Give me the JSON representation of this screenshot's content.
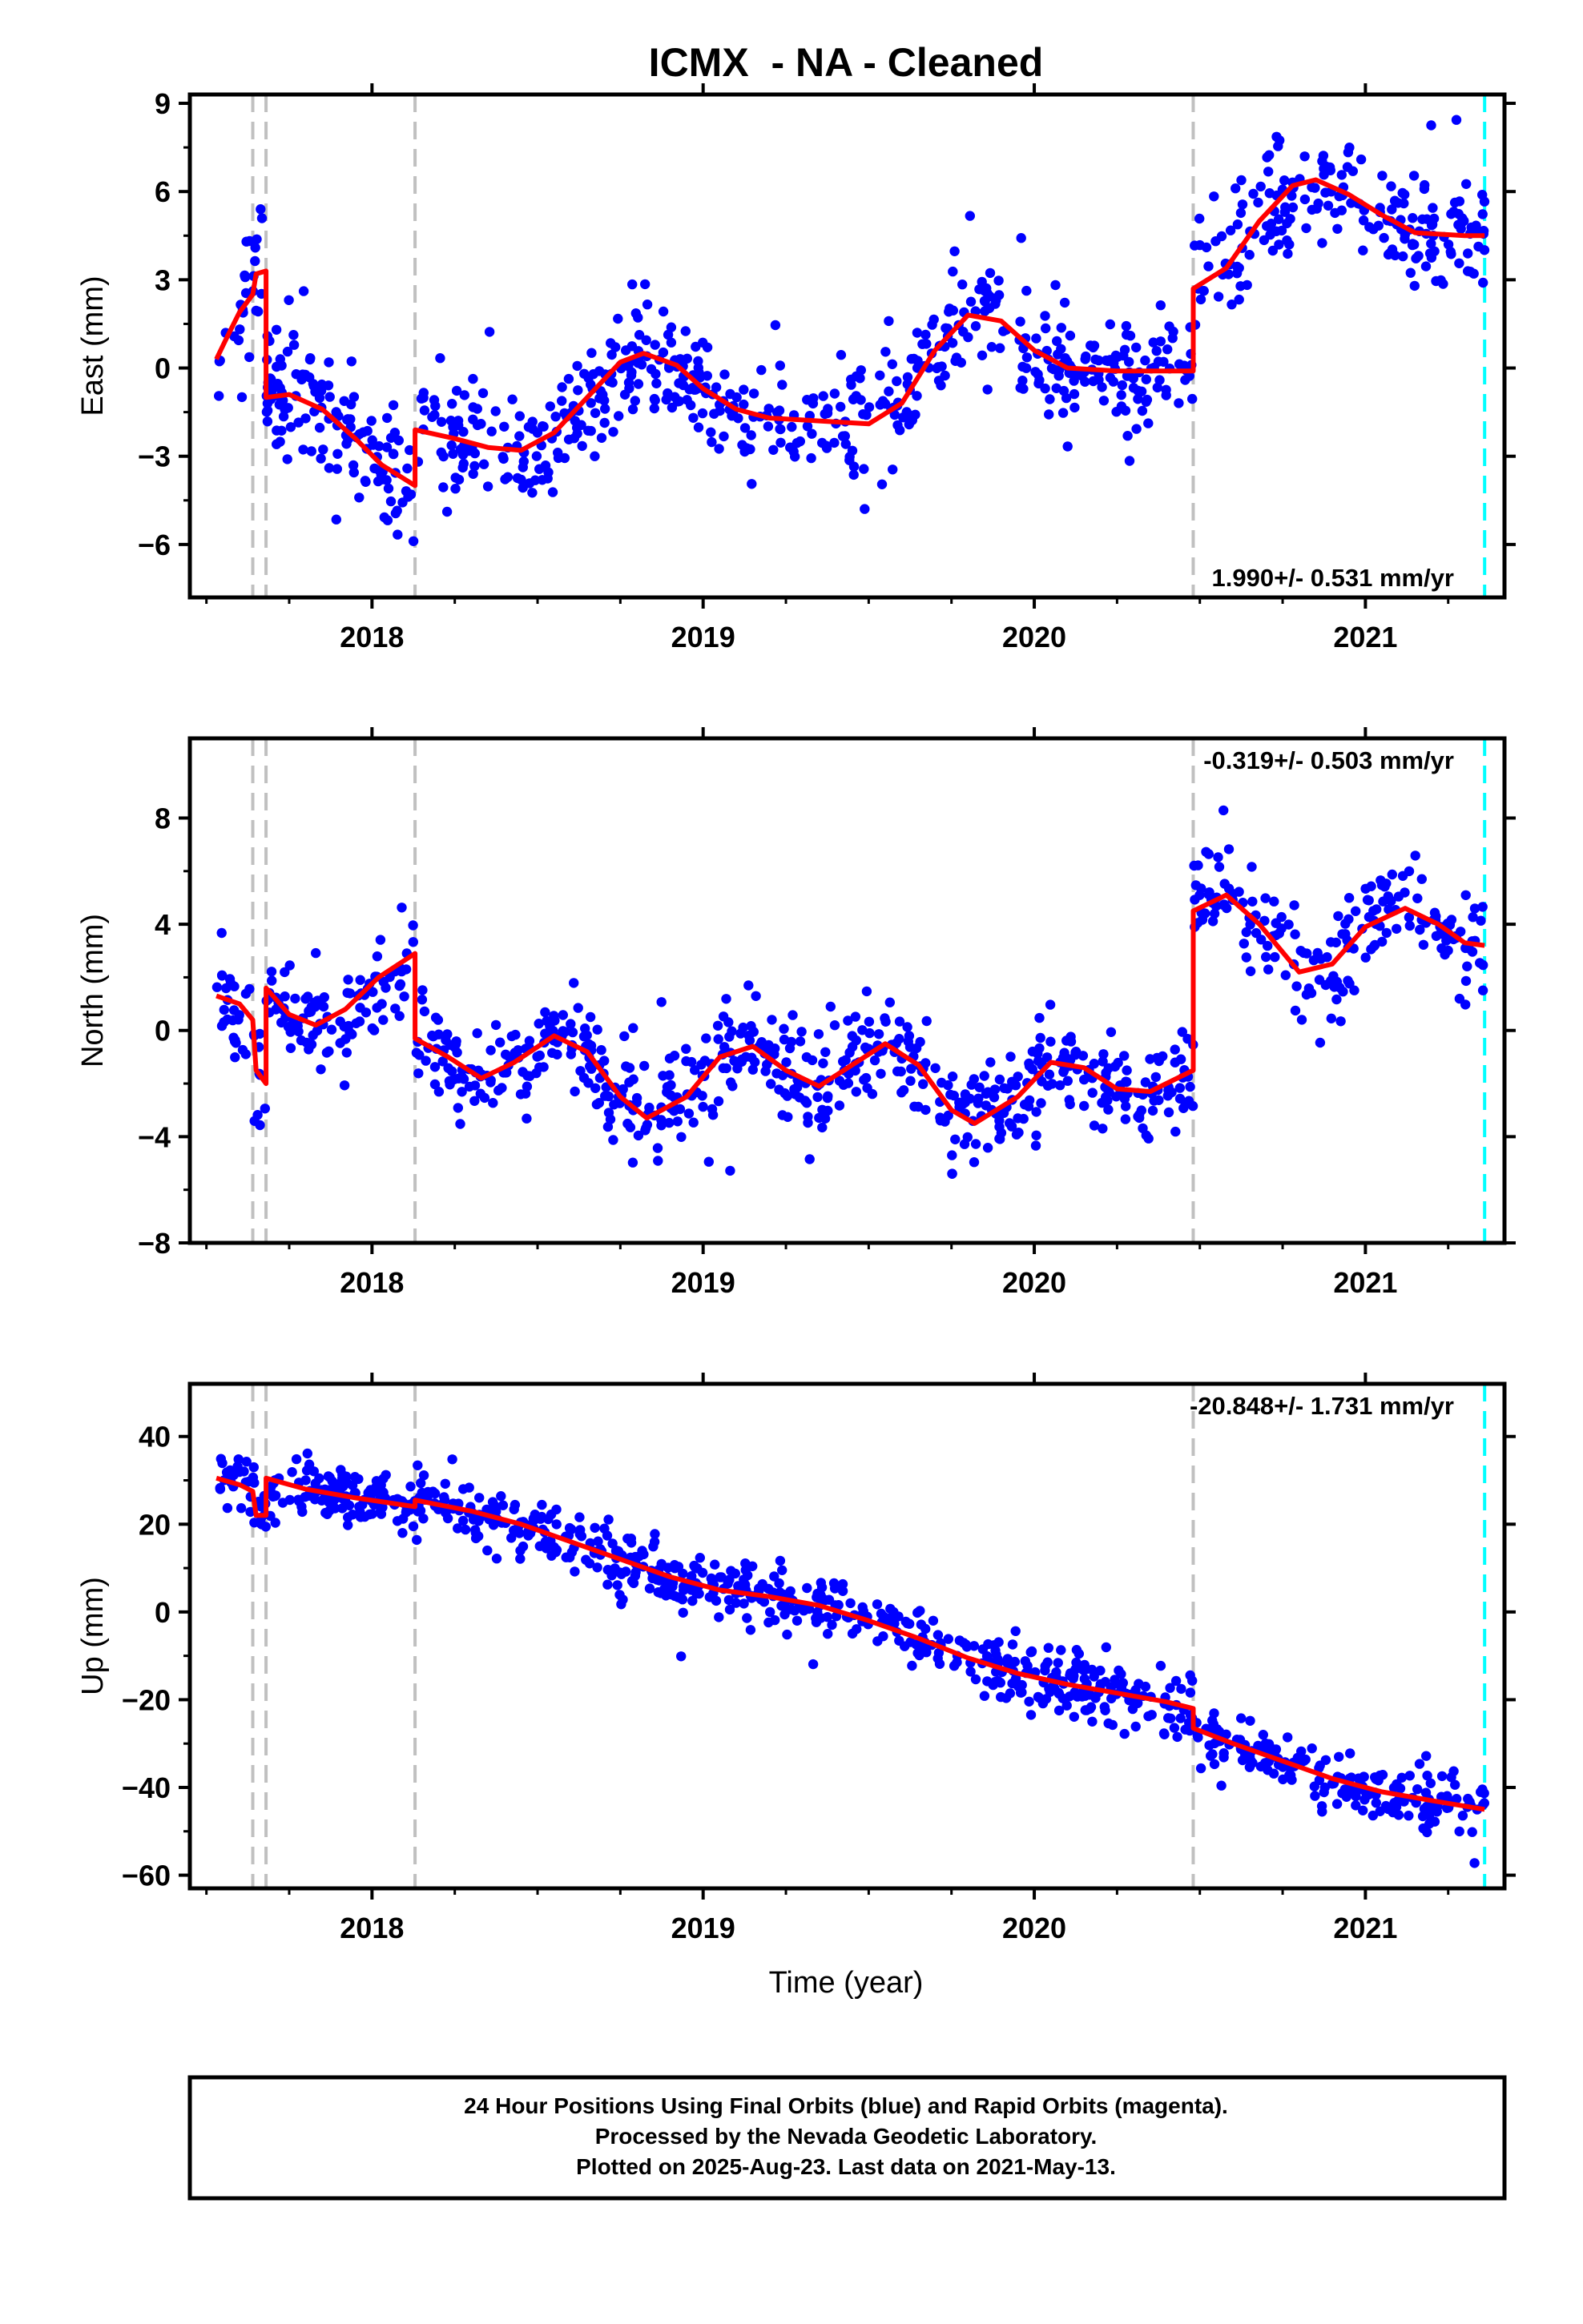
{
  "title": "ICMX  - NA - Cleaned",
  "xlabel": "Time (year)",
  "footer": {
    "line1": "24 Hour Positions Using Final Orbits (blue) and Rapid Orbits (magenta).",
    "line2": "Processed by the Nevada Geodetic Laboratory.",
    "line3": "Plotted on 2025-Aug-23. Last data on 2021-May-13."
  },
  "colors": {
    "points": "#0000ff",
    "model": "#ff0000",
    "steps": "#c0c0c0",
    "last_data": "#00ffff",
    "frame": "#000000"
  },
  "chart_data": [
    {
      "type": "scatter",
      "name": "east",
      "ylabel": "East (mm)",
      "rate_label": "1.990+/- 0.531 mm/yr",
      "rate_position": "bottom-right",
      "xlim": [
        2017.45,
        2021.42
      ],
      "ylim": [
        -7.8,
        9.3
      ],
      "yticks": [
        -6,
        -3,
        0,
        3,
        6,
        9
      ],
      "ytick_labels": [
        "−6",
        "−3",
        "0",
        "3",
        "6",
        "9"
      ],
      "xticks": [
        2018,
        2019,
        2020,
        2021
      ],
      "xtick_labels": [
        "2018",
        "2019",
        "2020",
        "2021"
      ],
      "steps": [
        2017.64,
        2017.68,
        2018.13,
        2020.48
      ],
      "last_data": 2021.36,
      "model": [
        [
          2017.53,
          0.3
        ],
        [
          2017.56,
          1.0
        ],
        [
          2017.6,
          1.9
        ],
        [
          2017.64,
          2.5
        ],
        [
          2017.65,
          3.2
        ],
        [
          2017.68,
          3.3
        ],
        [
          2017.68,
          -1.0
        ],
        [
          2017.75,
          -0.9
        ],
        [
          2017.85,
          -1.4
        ],
        [
          2017.95,
          -2.4
        ],
        [
          2018.03,
          -3.3
        ],
        [
          2018.13,
          -4.0
        ],
        [
          2018.13,
          -2.1
        ],
        [
          2018.25,
          -2.4
        ],
        [
          2018.35,
          -2.7
        ],
        [
          2018.45,
          -2.8
        ],
        [
          2018.55,
          -2.2
        ],
        [
          2018.65,
          -1.0
        ],
        [
          2018.75,
          0.2
        ],
        [
          2018.82,
          0.5
        ],
        [
          2018.92,
          0.1
        ],
        [
          2019.0,
          -0.7
        ],
        [
          2019.1,
          -1.4
        ],
        [
          2019.2,
          -1.7
        ],
        [
          2019.35,
          -1.8
        ],
        [
          2019.5,
          -1.9
        ],
        [
          2019.6,
          -1.2
        ],
        [
          2019.7,
          0.6
        ],
        [
          2019.8,
          1.8
        ],
        [
          2019.9,
          1.6
        ],
        [
          2020.0,
          0.6
        ],
        [
          2020.1,
          0.0
        ],
        [
          2020.25,
          -0.1
        ],
        [
          2020.4,
          -0.1
        ],
        [
          2020.48,
          -0.1
        ],
        [
          2020.48,
          2.7
        ],
        [
          2020.58,
          3.4
        ],
        [
          2020.68,
          5.0
        ],
        [
          2020.78,
          6.2
        ],
        [
          2020.85,
          6.4
        ],
        [
          2020.95,
          5.9
        ],
        [
          2021.05,
          5.2
        ],
        [
          2021.15,
          4.6
        ],
        [
          2021.3,
          4.5
        ],
        [
          2021.36,
          4.5
        ]
      ],
      "scatter_model": {
        "seed": 11,
        "n": 900,
        "noise": 1.05,
        "outlier_rate": 0.012
      }
    },
    {
      "type": "scatter",
      "name": "north",
      "ylabel": "North (mm)",
      "rate_label": "-0.319+/- 0.503 mm/yr",
      "rate_position": "top-right",
      "xlim": [
        2017.45,
        2021.42
      ],
      "ylim": [
        -8.0,
        11.0
      ],
      "yticks": [
        -8,
        -4,
        0,
        4,
        8
      ],
      "ytick_labels": [
        "−8",
        "−4",
        "0",
        "4",
        "8"
      ],
      "xticks": [
        2018,
        2019,
        2020,
        2021
      ],
      "xtick_labels": [
        "2018",
        "2019",
        "2020",
        "2021"
      ],
      "steps": [
        2017.64,
        2017.68,
        2018.13,
        2020.48
      ],
      "last_data": 2021.36,
      "model": [
        [
          2017.53,
          1.3
        ],
        [
          2017.6,
          1.0
        ],
        [
          2017.64,
          0.4
        ],
        [
          2017.65,
          -1.5
        ],
        [
          2017.68,
          -2.0
        ],
        [
          2017.68,
          1.6
        ],
        [
          2017.75,
          0.6
        ],
        [
          2017.83,
          0.2
        ],
        [
          2017.92,
          0.8
        ],
        [
          2018.02,
          2.0
        ],
        [
          2018.13,
          2.9
        ],
        [
          2018.13,
          -0.3
        ],
        [
          2018.23,
          -1.0
        ],
        [
          2018.33,
          -1.8
        ],
        [
          2018.43,
          -1.2
        ],
        [
          2018.55,
          -0.2
        ],
        [
          2018.65,
          -0.8
        ],
        [
          2018.75,
          -2.5
        ],
        [
          2018.83,
          -3.3
        ],
        [
          2018.95,
          -2.5
        ],
        [
          2019.05,
          -1.0
        ],
        [
          2019.15,
          -0.6
        ],
        [
          2019.25,
          -1.5
        ],
        [
          2019.35,
          -2.1
        ],
        [
          2019.45,
          -1.3
        ],
        [
          2019.55,
          -0.5
        ],
        [
          2019.65,
          -1.3
        ],
        [
          2019.75,
          -3.0
        ],
        [
          2019.82,
          -3.5
        ],
        [
          2019.95,
          -2.5
        ],
        [
          2020.05,
          -1.2
        ],
        [
          2020.15,
          -1.4
        ],
        [
          2020.25,
          -2.2
        ],
        [
          2020.35,
          -2.3
        ],
        [
          2020.48,
          -1.5
        ],
        [
          2020.48,
          4.5
        ],
        [
          2020.58,
          5.1
        ],
        [
          2020.68,
          4.0
        ],
        [
          2020.8,
          2.2
        ],
        [
          2020.9,
          2.5
        ],
        [
          2021.0,
          3.9
        ],
        [
          2021.12,
          4.6
        ],
        [
          2021.22,
          4.0
        ],
        [
          2021.3,
          3.3
        ],
        [
          2021.36,
          3.2
        ]
      ],
      "scatter_model": {
        "seed": 23,
        "n": 900,
        "noise": 0.95,
        "outlier_rate": 0.012
      }
    },
    {
      "type": "scatter",
      "name": "up",
      "ylabel": "Up (mm)",
      "rate_label": "-20.848+/- 1.731 mm/yr",
      "rate_position": "top-right",
      "xlim": [
        2017.45,
        2021.42
      ],
      "ylim": [
        -63,
        52
      ],
      "yticks": [
        -60,
        -40,
        -20,
        0,
        20,
        40
      ],
      "ytick_labels": [
        "−60",
        "−40",
        "−20",
        "0",
        "20",
        "40"
      ],
      "xticks": [
        2018,
        2019,
        2020,
        2021
      ],
      "xtick_labels": [
        "2018",
        "2019",
        "2020",
        "2021"
      ],
      "steps": [
        2017.64,
        2017.68,
        2018.13,
        2020.48
      ],
      "last_data": 2021.36,
      "model": [
        [
          2017.53,
          30.5
        ],
        [
          2017.6,
          29.0
        ],
        [
          2017.64,
          27.5
        ],
        [
          2017.65,
          22.0
        ],
        [
          2017.68,
          22.0
        ],
        [
          2017.68,
          30.5
        ],
        [
          2017.8,
          28.0
        ],
        [
          2017.95,
          26.0
        ],
        [
          2018.13,
          24.0
        ],
        [
          2018.13,
          25.5
        ],
        [
          2018.3,
          23.0
        ],
        [
          2018.45,
          20.0
        ],
        [
          2018.6,
          16.0
        ],
        [
          2018.75,
          12.0
        ],
        [
          2018.9,
          8.0
        ],
        [
          2019.05,
          5.0
        ],
        [
          2019.2,
          3.5
        ],
        [
          2019.35,
          1.5
        ],
        [
          2019.5,
          -2.0
        ],
        [
          2019.65,
          -6.0
        ],
        [
          2019.8,
          -10.5
        ],
        [
          2019.95,
          -14.0
        ],
        [
          2020.1,
          -16.5
        ],
        [
          2020.25,
          -18.5
        ],
        [
          2020.4,
          -20.5
        ],
        [
          2020.48,
          -22.0
        ],
        [
          2020.48,
          -26.5
        ],
        [
          2020.6,
          -30.0
        ],
        [
          2020.75,
          -34.0
        ],
        [
          2020.9,
          -38.0
        ],
        [
          2021.05,
          -41.0
        ],
        [
          2021.2,
          -43.0
        ],
        [
          2021.36,
          -45.0
        ]
      ],
      "scatter_model": {
        "seed": 37,
        "n": 900,
        "noise": 3.6,
        "outlier_rate": 0.01
      }
    }
  ]
}
